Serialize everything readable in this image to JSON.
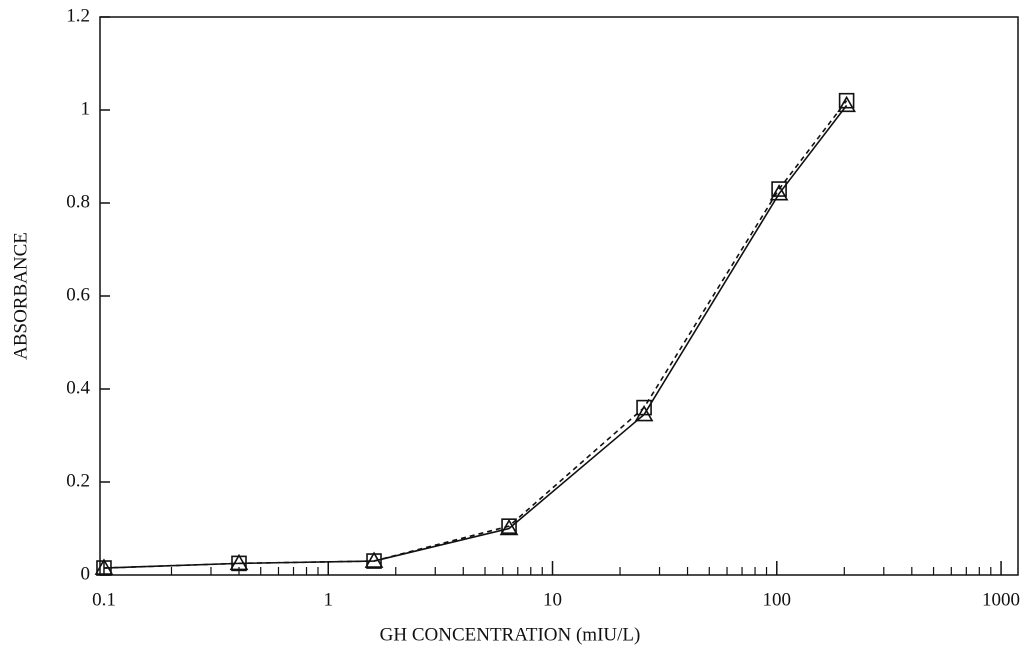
{
  "chart_data": {
    "type": "line",
    "xlabel": "GH CONCENTRATION (mIU/L)",
    "ylabel": "ABSORBANCE",
    "x": [
      0.1,
      0.4,
      1.6,
      6.4,
      25.6,
      102.4,
      204.8
    ],
    "series": [
      {
        "color": "#111111",
        "marker": "square",
        "dash": "dashed",
        "values": [
          0.015,
          0.025,
          0.03,
          0.105,
          0.36,
          0.83,
          1.02
        ]
      },
      {
        "color": "#111111",
        "marker": "triangle",
        "dash": "solid",
        "values": [
          0.015,
          0.025,
          0.03,
          0.1,
          0.345,
          0.82,
          1.01
        ]
      }
    ],
    "xscale": "log",
    "xlim": [
      0.096,
      1190
    ],
    "ylim": [
      0,
      1.2
    ],
    "xticks": [
      0.1,
      1,
      10,
      100,
      1000
    ],
    "xminorticks": [
      0.2,
      0.3,
      0.4,
      0.5,
      0.6,
      0.7,
      0.8,
      0.9,
      2,
      3,
      4,
      5,
      6,
      7,
      8,
      9,
      20,
      30,
      40,
      50,
      60,
      70,
      80,
      90,
      200,
      300,
      400,
      500,
      600,
      700,
      800,
      900
    ],
    "yticks": [
      0,
      0.2,
      0.4,
      0.6,
      0.8,
      1,
      1.2
    ]
  }
}
